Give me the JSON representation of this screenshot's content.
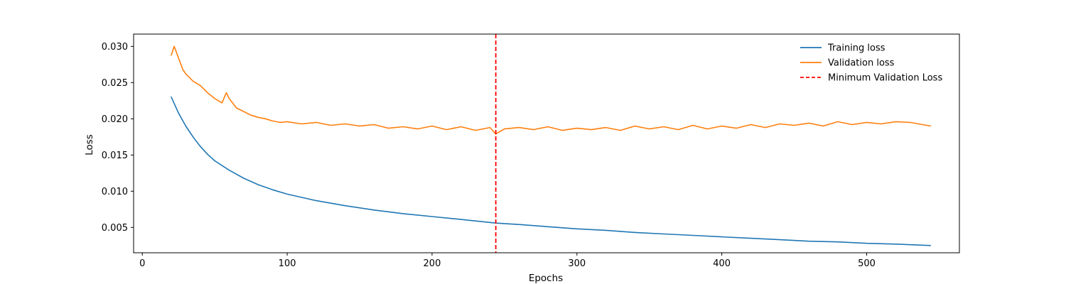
{
  "chart_data": {
    "type": "line",
    "xlabel": "Epochs",
    "ylabel": "Loss",
    "xlim": [
      -6,
      564
    ],
    "ylim": [
      0.0015,
      0.0317
    ],
    "xticks": [
      0,
      100,
      200,
      300,
      400,
      500
    ],
    "yticks": [
      0.005,
      0.01,
      0.015,
      0.02,
      0.025,
      0.03
    ],
    "xtick_labels": [
      "0",
      "100",
      "200",
      "300",
      "400",
      "500"
    ],
    "ytick_labels": [
      "0.005",
      "0.010",
      "0.015",
      "0.020",
      "0.025",
      "0.030"
    ],
    "grid": false,
    "legend_position": "top-right",
    "series": [
      {
        "name": "Training loss",
        "color": "#1f77b4",
        "style": "solid",
        "x": [
          20,
          25,
          30,
          35,
          40,
          45,
          50,
          60,
          70,
          80,
          90,
          100,
          120,
          140,
          160,
          180,
          200,
          220,
          244,
          260,
          280,
          300,
          320,
          340,
          360,
          380,
          400,
          420,
          440,
          460,
          480,
          500,
          520,
          544
        ],
        "y": [
          0.023,
          0.0208,
          0.019,
          0.0175,
          0.0162,
          0.0151,
          0.0142,
          0.0129,
          0.0118,
          0.0109,
          0.0102,
          0.0096,
          0.0087,
          0.008,
          0.0074,
          0.0069,
          0.0065,
          0.0061,
          0.0056,
          0.0054,
          0.0051,
          0.0048,
          0.0046,
          0.0043,
          0.0041,
          0.0039,
          0.0037,
          0.0035,
          0.0033,
          0.0031,
          0.003,
          0.0028,
          0.0027,
          0.0025
        ]
      },
      {
        "name": "Validation loss",
        "color": "#ff7f0e",
        "style": "solid",
        "x": [
          20,
          22,
          25,
          28,
          30,
          35,
          40,
          45,
          50,
          55,
          58,
          60,
          65,
          70,
          75,
          80,
          85,
          90,
          95,
          100,
          110,
          120,
          130,
          140,
          150,
          160,
          170,
          180,
          190,
          200,
          210,
          220,
          230,
          240,
          244,
          250,
          260,
          270,
          280,
          290,
          300,
          310,
          320,
          330,
          340,
          350,
          360,
          370,
          380,
          390,
          400,
          410,
          420,
          430,
          440,
          450,
          460,
          470,
          480,
          490,
          500,
          510,
          520,
          530,
          544
        ],
        "y": [
          0.0288,
          0.03,
          0.0284,
          0.0268,
          0.0262,
          0.0252,
          0.0246,
          0.0236,
          0.0228,
          0.0222,
          0.0236,
          0.0228,
          0.0215,
          0.021,
          0.0205,
          0.0202,
          0.02,
          0.0197,
          0.0195,
          0.0196,
          0.0193,
          0.0195,
          0.0191,
          0.0193,
          0.019,
          0.0192,
          0.0187,
          0.0189,
          0.0186,
          0.019,
          0.0185,
          0.0189,
          0.0184,
          0.0188,
          0.0179,
          0.0186,
          0.0188,
          0.0185,
          0.0189,
          0.0184,
          0.0187,
          0.0185,
          0.0188,
          0.0184,
          0.019,
          0.0186,
          0.0189,
          0.0185,
          0.0191,
          0.0186,
          0.019,
          0.0187,
          0.0192,
          0.0188,
          0.0193,
          0.0191,
          0.0194,
          0.019,
          0.0196,
          0.0192,
          0.0195,
          0.0193,
          0.0196,
          0.0195,
          0.019
        ]
      }
    ],
    "vlines": [
      {
        "name": "Minimum Validation Loss",
        "x": 244,
        "color": "#ff0000",
        "style": "dashed"
      }
    ]
  }
}
